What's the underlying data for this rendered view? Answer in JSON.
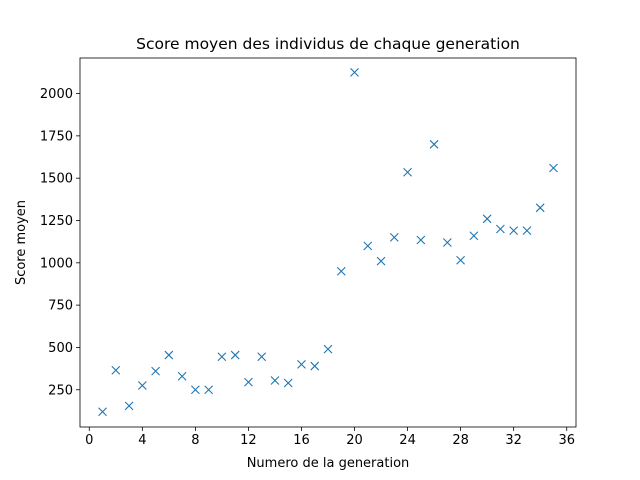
{
  "chart_data": {
    "type": "scatter",
    "title": "Score moyen des individus de chaque generation",
    "xlabel": "Numero de la generation",
    "ylabel": "Score moyen",
    "xlim": [
      -0.7,
      36.7
    ],
    "ylim": [
      30,
      2210
    ],
    "xticks": [
      0,
      4,
      8,
      12,
      16,
      20,
      24,
      28,
      32,
      36
    ],
    "yticks": [
      250,
      500,
      750,
      1000,
      1250,
      1500,
      1750,
      2000
    ],
    "marker": "x",
    "color": "#1f77b4",
    "grid": false,
    "series": [
      {
        "x": [
          1,
          2,
          3,
          4,
          5,
          6,
          7,
          8,
          9,
          10,
          11,
          12,
          13,
          14,
          15,
          16,
          17,
          18,
          19,
          20,
          21,
          22,
          23,
          24,
          25,
          26,
          27,
          28,
          29,
          30,
          31,
          32,
          33,
          34,
          35
        ],
        "y": [
          120,
          365,
          155,
          275,
          360,
          455,
          330,
          250,
          250,
          445,
          455,
          295,
          445,
          305,
          290,
          400,
          390,
          490,
          950,
          2125,
          1100,
          1010,
          1150,
          1535,
          1135,
          1700,
          1120,
          1015,
          1160,
          1260,
          1200,
          1190,
          1190,
          1325,
          1560
        ]
      }
    ]
  }
}
